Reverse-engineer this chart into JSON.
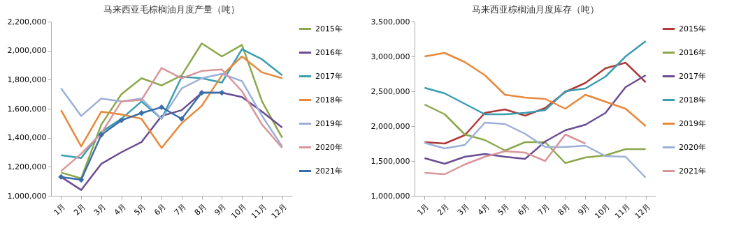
{
  "chart_data": [
    {
      "type": "line",
      "title": "马来西亚毛棕榈油月度产量（吨）",
      "categories": [
        "1月",
        "2月",
        "3月",
        "4月",
        "5月",
        "6月",
        "7月",
        "8月",
        "9月",
        "10月",
        "11月",
        "12月"
      ],
      "ylim": [
        1000000,
        2200000
      ],
      "yticks": [
        {
          "value": 1000000,
          "label": "1,000,000"
        },
        {
          "value": 1200000,
          "label": "1,200,000"
        },
        {
          "value": 1400000,
          "label": "1,400,000"
        },
        {
          "value": 1600000,
          "label": "1,600,000"
        },
        {
          "value": 1800000,
          "label": "1,800,000"
        },
        {
          "value": 2000000,
          "label": "2,000,000"
        },
        {
          "value": 2200000,
          "label": "2,200,000"
        }
      ],
      "grid": false,
      "legend": "right",
      "series": [
        {
          "name": "2015年",
          "color": "#8aa84b",
          "values": [
            1160000,
            1120000,
            1490000,
            1700000,
            1810000,
            1760000,
            1830000,
            2050000,
            1960000,
            2040000,
            1650000,
            1400000
          ]
        },
        {
          "name": "2016年",
          "color": "#6a4c93",
          "values": [
            1130000,
            1040000,
            1220000,
            1300000,
            1370000,
            1550000,
            1590000,
            1710000,
            1710000,
            1680000,
            1580000,
            1470000
          ]
        },
        {
          "name": "2017年",
          "color": "#3a9db0",
          "values": [
            1280000,
            1260000,
            1440000,
            1530000,
            1650000,
            1530000,
            1820000,
            1810000,
            1780000,
            2010000,
            1940000,
            1830000
          ]
        },
        {
          "name": "2018年",
          "color": "#e8883a",
          "values": [
            1590000,
            1340000,
            1580000,
            1560000,
            1530000,
            1330000,
            1500000,
            1620000,
            1830000,
            1960000,
            1850000,
            1810000
          ]
        },
        {
          "name": "2019年",
          "color": "#9bb0d8",
          "values": [
            1740000,
            1550000,
            1670000,
            1650000,
            1670000,
            1530000,
            1740000,
            1810000,
            1840000,
            1790000,
            1550000,
            1340000
          ]
        },
        {
          "name": "2020年",
          "color": "#d9959a",
          "values": [
            1170000,
            1290000,
            1430000,
            1650000,
            1660000,
            1880000,
            1810000,
            1860000,
            1870000,
            1720000,
            1490000,
            1330000
          ]
        },
        {
          "name": "2021年",
          "color": "#3b6ea8",
          "marker": "diamond",
          "values": [
            1130000,
            1110000,
            1420000,
            1520000,
            1570000,
            1610000,
            1530000,
            1710000,
            1710000,
            null,
            null,
            null
          ]
        }
      ]
    },
    {
      "type": "line",
      "title": "马来西亚棕榈油月度库存（吨）",
      "categories": [
        "1月",
        "2月",
        "3月",
        "4月",
        "5月",
        "6月",
        "7月",
        "8月",
        "9月",
        "10月",
        "11月",
        "12月"
      ],
      "ylim": [
        1000000,
        3500000
      ],
      "yticks": [
        {
          "value": 1000000,
          "label": "1,000,000"
        },
        {
          "value": 1500000,
          "label": "1,500,000"
        },
        {
          "value": 2000000,
          "label": "2,000,000"
        },
        {
          "value": 2500000,
          "label": "2,500,000"
        },
        {
          "value": 3000000,
          "label": "3,000,000"
        },
        {
          "value": 3500000,
          "label": "3,500,000"
        }
      ],
      "grid": false,
      "legend": "right",
      "series": [
        {
          "name": "2015年",
          "color": "#b03a3a",
          "values": [
            1770000,
            1750000,
            1870000,
            2190000,
            2240000,
            2150000,
            2260000,
            2490000,
            2620000,
            2830000,
            2910000,
            2630000
          ]
        },
        {
          "name": "2016年",
          "color": "#8aa84b",
          "values": [
            2310000,
            2170000,
            1880000,
            1800000,
            1650000,
            1770000,
            1770000,
            1470000,
            1550000,
            1580000,
            1670000,
            1670000
          ]
        },
        {
          "name": "2017年",
          "color": "#6a4c93",
          "values": [
            1540000,
            1460000,
            1560000,
            1600000,
            1560000,
            1530000,
            1780000,
            1940000,
            2020000,
            2190000,
            2560000,
            2730000
          ]
        },
        {
          "name": "2018年",
          "color": "#3a9db0",
          "values": [
            2550000,
            2470000,
            2320000,
            2170000,
            2170000,
            2190000,
            2230000,
            2500000,
            2540000,
            2710000,
            3000000,
            3220000
          ]
        },
        {
          "name": "2019年",
          "color": "#e8883a",
          "values": [
            3000000,
            3050000,
            2920000,
            2730000,
            2450000,
            2410000,
            2390000,
            2250000,
            2450000,
            2350000,
            2250000,
            2000000
          ]
        },
        {
          "name": "2020年",
          "color": "#9bb0d8",
          "values": [
            1760000,
            1680000,
            1730000,
            2050000,
            2030000,
            1890000,
            1700000,
            1700000,
            1720000,
            1570000,
            1560000,
            1260000
          ]
        },
        {
          "name": "2021年",
          "color": "#d9959a",
          "values": [
            1330000,
            1310000,
            1450000,
            1560000,
            1640000,
            1620000,
            1500000,
            1880000,
            1750000,
            null,
            null,
            null
          ]
        }
      ]
    }
  ]
}
